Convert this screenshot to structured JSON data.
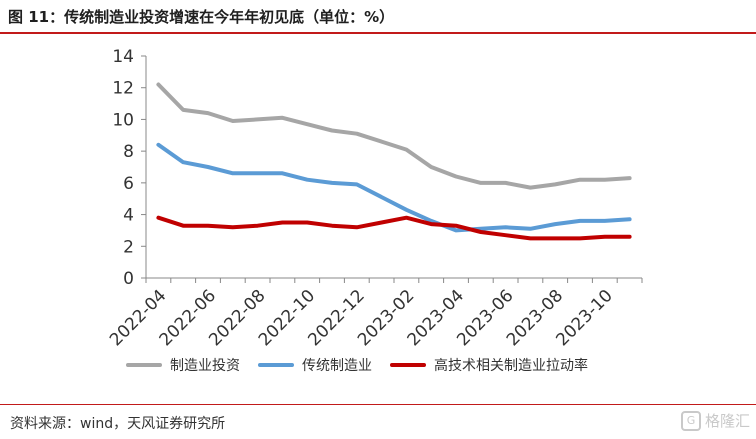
{
  "title": "图 11：传统制造业投资增速在今年年初见底（单位：%）",
  "source": "资料来源：wind，天风证券研究所",
  "watermark": "格隆汇",
  "colors": {
    "title_rule": "#c21a1a",
    "gray": "#a6a6a6",
    "blue": "#5b9bd5",
    "red": "#c00000"
  },
  "chart_data": {
    "type": "line",
    "title": "图 11：传统制造业投资增速在今年年初见底（单位：%）",
    "x": [
      "2022-04",
      "2022-05",
      "2022-06",
      "2022-07",
      "2022-08",
      "2022-09",
      "2022-10",
      "2022-11",
      "2022-12",
      "2023-01",
      "2023-02",
      "2023-03",
      "2023-04",
      "2023-05",
      "2023-06",
      "2023-07",
      "2023-08",
      "2023-09",
      "2023-10",
      "2023-11"
    ],
    "x_tick_labels": [
      "2022-04",
      "2022-06",
      "2022-08",
      "2022-10",
      "2022-12",
      "2023-02",
      "2023-04",
      "2023-06",
      "2023-08",
      "2023-10"
    ],
    "ylim": [
      0,
      14
    ],
    "yticks": [
      0,
      2,
      4,
      6,
      8,
      10,
      12,
      14
    ],
    "grid": false,
    "legend_position": "bottom",
    "series": [
      {
        "name": "制造业投资",
        "color": "#a6a6a6",
        "values": [
          12.2,
          10.6,
          10.4,
          9.9,
          10.0,
          10.1,
          9.7,
          9.3,
          9.1,
          8.6,
          8.1,
          7.0,
          6.4,
          6.0,
          6.0,
          5.7,
          5.9,
          6.2,
          6.2,
          6.3
        ]
      },
      {
        "name": "传统制造业",
        "color": "#5b9bd5",
        "values": [
          8.4,
          7.3,
          7.0,
          6.6,
          6.6,
          6.6,
          6.2,
          6.0,
          5.9,
          5.1,
          4.3,
          3.6,
          3.0,
          3.1,
          3.2,
          3.1,
          3.4,
          3.6,
          3.6,
          3.7
        ]
      },
      {
        "name": "高技术相关制造业拉动率",
        "color": "#c00000",
        "values": [
          3.8,
          3.3,
          3.3,
          3.2,
          3.3,
          3.5,
          3.5,
          3.3,
          3.2,
          3.5,
          3.8,
          3.4,
          3.3,
          2.9,
          2.7,
          2.5,
          2.5,
          2.5,
          2.6,
          2.6
        ]
      }
    ]
  }
}
